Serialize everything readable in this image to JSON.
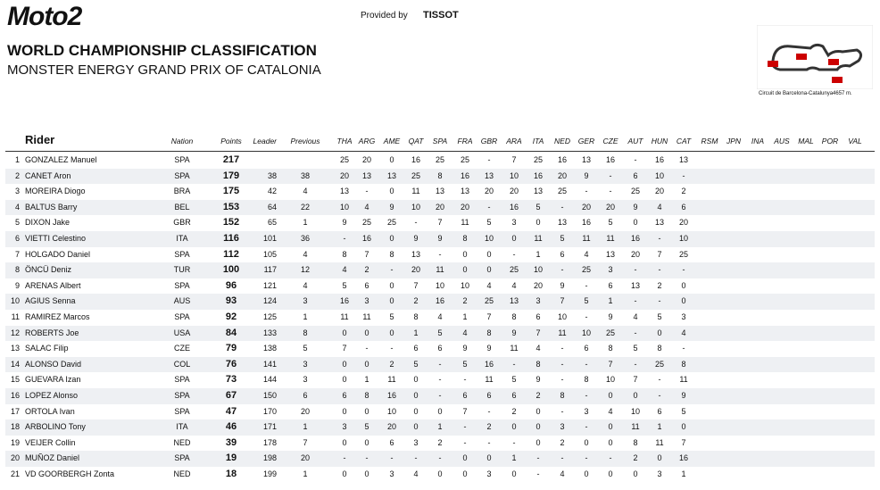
{
  "header": {
    "logo": "Moto2",
    "provided_by": "Provided by",
    "sponsor": "TISSOT",
    "title": "WORLD CHAMPIONSHIP CLASSIFICATION",
    "subtitle": "MONSTER ENERGY GRAND PRIX OF CATALONIA",
    "circuit": "Circuit de Barcelona-Catalunya4657 m."
  },
  "table": {
    "columns": [
      "Rider",
      "Nation",
      "Points",
      "Leader",
      "Previous",
      "THA",
      "ARG",
      "AME",
      "QAT",
      "SPA",
      "FRA",
      "GBR",
      "ARA",
      "ITA",
      "NED",
      "GER",
      "CZE",
      "AUT",
      "HUN",
      "CAT",
      "RSM",
      "JPN",
      "INA",
      "AUS",
      "MAL",
      "POR",
      "VAL"
    ],
    "rows": [
      [
        "1",
        "GONZALEZ Manuel",
        "SPA",
        "217",
        null,
        null,
        "25",
        "20",
        "0",
        "16",
        "25",
        "25",
        "-",
        "7",
        "25",
        "16",
        "13",
        "16",
        "-",
        "16",
        "13"
      ],
      [
        "2",
        "CANET Aron",
        "SPA",
        "179",
        "38",
        "38",
        "20",
        "13",
        "13",
        "25",
        "8",
        "16",
        "13",
        "10",
        "16",
        "20",
        "9",
        "-",
        "6",
        "10",
        "-"
      ],
      [
        "3",
        "MOREIRA Diogo",
        "BRA",
        "175",
        "42",
        "4",
        "13",
        "-",
        "0",
        "11",
        "13",
        "13",
        "20",
        "20",
        "13",
        "25",
        "-",
        "-",
        "25",
        "20",
        "2"
      ],
      [
        "4",
        "BALTUS Barry",
        "BEL",
        "153",
        "64",
        "22",
        "10",
        "4",
        "9",
        "10",
        "20",
        "20",
        "-",
        "16",
        "5",
        "-",
        "20",
        "20",
        "9",
        "4",
        "6"
      ],
      [
        "5",
        "DIXON Jake",
        "GBR",
        "152",
        "65",
        "1",
        "9",
        "25",
        "25",
        "-",
        "7",
        "11",
        "5",
        "3",
        "0",
        "13",
        "16",
        "5",
        "0",
        "13",
        "20"
      ],
      [
        "6",
        "VIETTI Celestino",
        "ITA",
        "116",
        "101",
        "36",
        "-",
        "16",
        "0",
        "9",
        "9",
        "8",
        "10",
        "0",
        "11",
        "5",
        "11",
        "11",
        "16",
        "-",
        "10"
      ],
      [
        "7",
        "HOLGADO Daniel",
        "SPA",
        "112",
        "105",
        "4",
        "8",
        "7",
        "8",
        "13",
        "-",
        "0",
        "0",
        "-",
        "1",
        "6",
        "4",
        "13",
        "20",
        "7",
        "25"
      ],
      [
        "8",
        "ÖNCÜ Deniz",
        "TUR",
        "100",
        "117",
        "12",
        "4",
        "2",
        "-",
        "20",
        "11",
        "0",
        "0",
        "25",
        "10",
        "-",
        "25",
        "3",
        "-",
        "-",
        "-"
      ],
      [
        "9",
        "ARENAS Albert",
        "SPA",
        "96",
        "121",
        "4",
        "5",
        "6",
        "0",
        "7",
        "10",
        "10",
        "4",
        "4",
        "20",
        "9",
        "-",
        "6",
        "13",
        "2",
        "0"
      ],
      [
        "10",
        "AGIUS Senna",
        "AUS",
        "93",
        "124",
        "3",
        "16",
        "3",
        "0",
        "2",
        "16",
        "2",
        "25",
        "13",
        "3",
        "7",
        "5",
        "1",
        "-",
        "-",
        "0"
      ],
      [
        "11",
        "RAMIREZ Marcos",
        "SPA",
        "92",
        "125",
        "1",
        "11",
        "11",
        "5",
        "8",
        "4",
        "1",
        "7",
        "8",
        "6",
        "10",
        "-",
        "9",
        "4",
        "5",
        "3"
      ],
      [
        "12",
        "ROBERTS Joe",
        "USA",
        "84",
        "133",
        "8",
        "0",
        "0",
        "0",
        "1",
        "5",
        "4",
        "8",
        "9",
        "7",
        "11",
        "10",
        "25",
        "-",
        "0",
        "4"
      ],
      [
        "13",
        "SALAC Filip",
        "CZE",
        "79",
        "138",
        "5",
        "7",
        "-",
        "-",
        "6",
        "6",
        "9",
        "9",
        "11",
        "4",
        "-",
        "6",
        "8",
        "5",
        "8",
        "-"
      ],
      [
        "14",
        "ALONSO David",
        "COL",
        "76",
        "141",
        "3",
        "0",
        "0",
        "2",
        "5",
        "-",
        "5",
        "16",
        "-",
        "8",
        "-",
        "-",
        "7",
        "-",
        "25",
        "8"
      ],
      [
        "15",
        "GUEVARA Izan",
        "SPA",
        "73",
        "144",
        "3",
        "0",
        "1",
        "11",
        "0",
        "-",
        "-",
        "11",
        "5",
        "9",
        "-",
        "8",
        "10",
        "7",
        "-",
        "11"
      ],
      [
        "16",
        "LOPEZ Alonso",
        "SPA",
        "67",
        "150",
        "6",
        "6",
        "8",
        "16",
        "0",
        "-",
        "6",
        "6",
        "6",
        "2",
        "8",
        "-",
        "0",
        "0",
        "-",
        "9"
      ],
      [
        "17",
        "ORTOLA Ivan",
        "SPA",
        "47",
        "170",
        "20",
        "0",
        "0",
        "10",
        "0",
        "0",
        "7",
        "-",
        "2",
        "0",
        "-",
        "3",
        "4",
        "10",
        "6",
        "5"
      ],
      [
        "18",
        "ARBOLINO Tony",
        "ITA",
        "46",
        "171",
        "1",
        "3",
        "5",
        "20",
        "0",
        "1",
        "-",
        "2",
        "0",
        "0",
        "3",
        "-",
        "0",
        "11",
        "1",
        "0"
      ],
      [
        "19",
        "VEIJER Collin",
        "NED",
        "39",
        "178",
        "7",
        "0",
        "0",
        "6",
        "3",
        "2",
        "-",
        "-",
        "-",
        "0",
        "2",
        "0",
        "0",
        "8",
        "11",
        "7"
      ],
      [
        "20",
        "MUÑOZ Daniel",
        "SPA",
        "19",
        "198",
        "20",
        "-",
        "-",
        "-",
        "-",
        "-",
        "0",
        "0",
        "1",
        "-",
        "-",
        "-",
        "-",
        "2",
        "0",
        "16"
      ],
      [
        "21",
        "VD GOORBERGH Zonta",
        "NED",
        "18",
        "199",
        "1",
        "0",
        "0",
        "3",
        "4",
        "0",
        "0",
        "3",
        "0",
        "-",
        "4",
        "0",
        "0",
        "0",
        "3",
        "1"
      ]
    ]
  }
}
